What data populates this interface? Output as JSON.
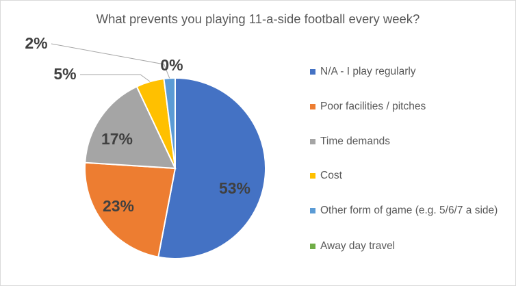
{
  "chart_data": {
    "type": "pie",
    "title": "What prevents you playing 11-a-side football every week?",
    "categories": [
      "N/A - I play regularly",
      "Poor facilities / pitches",
      "Time demands",
      "Cost",
      "Other form of game (e.g. 5/6/7 a side)",
      "Away day travel"
    ],
    "values": [
      53,
      23,
      17,
      5,
      2,
      0
    ],
    "data_labels": [
      "53%",
      "23%",
      "17%",
      "5%",
      "2%",
      "0%"
    ],
    "colors": [
      "#4472c4",
      "#ed7d31",
      "#a5a5a5",
      "#ffc000",
      "#5b9bd5",
      "#70ad47"
    ],
    "legend_position": "right"
  }
}
